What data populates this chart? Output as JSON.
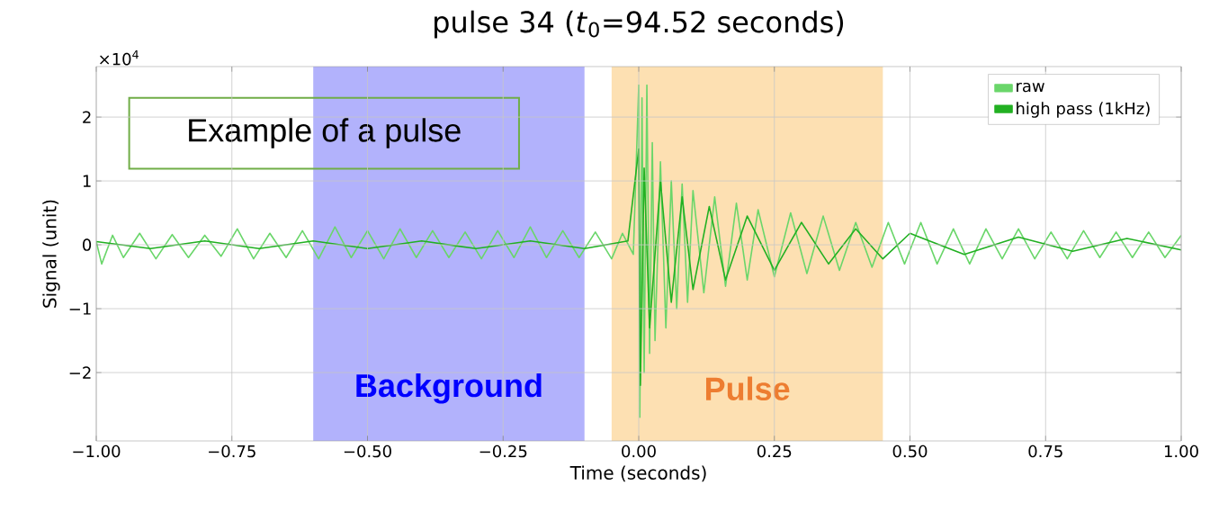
{
  "chart_data": {
    "type": "line",
    "title": "pulse 34 (*t*$_{0}$=94.52 seconds)",
    "xlabel": "Time (seconds)",
    "ylabel": "Signal (unit)",
    "annotations": [
      "×10$^{4}$",
      "Example of a pulse"
    ],
    "xlim": [
      -1,
      1
    ],
    "ylim": [
      -3.07,
      2.79
    ],
    "xticks": [
      {
        "value": -1,
        "label": "−1.00"
      },
      {
        "value": -0.75,
        "label": "−0.75"
      },
      {
        "value": -0.5,
        "label": "−0.50"
      },
      {
        "value": -0.25,
        "label": "−0.25"
      },
      {
        "value": 0,
        "label": "0.00"
      },
      {
        "value": 0.25,
        "label": "0.25"
      },
      {
        "value": 0.5,
        "label": "0.50"
      },
      {
        "value": 0.75,
        "label": "0.75"
      },
      {
        "value": 1,
        "label": "1.00"
      }
    ],
    "yticks": [
      {
        "value": -2,
        "label": "−2"
      },
      {
        "value": -1,
        "label": "−1"
      },
      0,
      1,
      2
    ],
    "grid": true,
    "legend": "top right",
    "marker": "none",
    "line_style": "solid",
    "bands": [
      {
        "axis": "x",
        "from": -0.6,
        "to": -0.1,
        "label": "Background",
        "color": "#b2b2fc"
      },
      {
        "axis": "x",
        "from": -0.05,
        "to": 0.45,
        "label": "Pulse",
        "color": "#fde0b2"
      }
    ],
    "series": [
      {
        "name": "raw",
        "color": "#6ad66a",
        "x": [
          -1.0,
          -0.99,
          -0.97,
          -0.95,
          -0.92,
          -0.89,
          -0.86,
          -0.83,
          -0.8,
          -0.77,
          -0.74,
          -0.71,
          -0.68,
          -0.65,
          -0.62,
          -0.59,
          -0.56,
          -0.53,
          -0.5,
          -0.47,
          -0.44,
          -0.41,
          -0.38,
          -0.35,
          -0.32,
          -0.29,
          -0.26,
          -0.23,
          -0.2,
          -0.17,
          -0.14,
          -0.11,
          -0.08,
          -0.05,
          -0.03,
          -0.01,
          0.0,
          0.002,
          0.006,
          0.01,
          0.015,
          0.02,
          0.025,
          0.03,
          0.04,
          0.05,
          0.06,
          0.07,
          0.08,
          0.09,
          0.1,
          0.12,
          0.14,
          0.16,
          0.18,
          0.2,
          0.22,
          0.25,
          0.28,
          0.31,
          0.34,
          0.37,
          0.4,
          0.43,
          0.46,
          0.49,
          0.52,
          0.55,
          0.58,
          0.61,
          0.64,
          0.67,
          0.7,
          0.73,
          0.76,
          0.79,
          0.82,
          0.85,
          0.88,
          0.91,
          0.94,
          0.97,
          1.0
        ],
        "values": [
          0.05,
          -0.3,
          0.15,
          -0.2,
          0.18,
          -0.22,
          0.16,
          -0.2,
          0.15,
          -0.18,
          0.25,
          -0.22,
          0.18,
          -0.2,
          0.22,
          -0.22,
          0.28,
          -0.2,
          0.22,
          -0.22,
          0.25,
          -0.2,
          0.22,
          -0.2,
          0.2,
          -0.22,
          0.22,
          -0.2,
          0.28,
          -0.2,
          0.22,
          -0.2,
          0.2,
          -0.22,
          0.18,
          -0.15,
          2.5,
          -2.7,
          2.3,
          -2.0,
          2.5,
          -1.7,
          1.6,
          -1.5,
          1.3,
          -1.3,
          1.0,
          -1.0,
          0.95,
          -0.9,
          0.85,
          -0.75,
          0.75,
          -0.65,
          0.65,
          -0.55,
          0.55,
          -0.5,
          0.5,
          -0.45,
          0.45,
          -0.4,
          0.35,
          -0.35,
          0.35,
          -0.3,
          0.35,
          -0.3,
          0.25,
          -0.3,
          0.25,
          -0.22,
          0.25,
          -0.22,
          0.2,
          -0.22,
          0.22,
          -0.2,
          0.2,
          -0.2,
          0.2,
          -0.2,
          0.15
        ]
      },
      {
        "name": "high pass (1kHz)",
        "color": "#22b022",
        "x": [
          -1.0,
          -0.9,
          -0.8,
          -0.7,
          -0.6,
          -0.5,
          -0.4,
          -0.3,
          -0.2,
          -0.1,
          -0.02,
          0.0,
          0.003,
          0.01,
          0.02,
          0.04,
          0.06,
          0.08,
          0.1,
          0.13,
          0.16,
          0.2,
          0.25,
          0.3,
          0.35,
          0.4,
          0.45,
          0.5,
          0.6,
          0.7,
          0.8,
          0.9,
          1.0
        ],
        "values": [
          0.05,
          -0.06,
          0.06,
          -0.06,
          0.06,
          -0.06,
          0.06,
          -0.06,
          0.06,
          -0.06,
          0.06,
          1.5,
          -2.2,
          1.2,
          -1.3,
          1.0,
          -0.9,
          0.75,
          -0.7,
          0.6,
          -0.55,
          0.45,
          -0.4,
          0.35,
          -0.3,
          0.25,
          -0.22,
          0.18,
          -0.15,
          0.12,
          -0.1,
          0.1,
          -0.08
        ]
      }
    ]
  }
}
